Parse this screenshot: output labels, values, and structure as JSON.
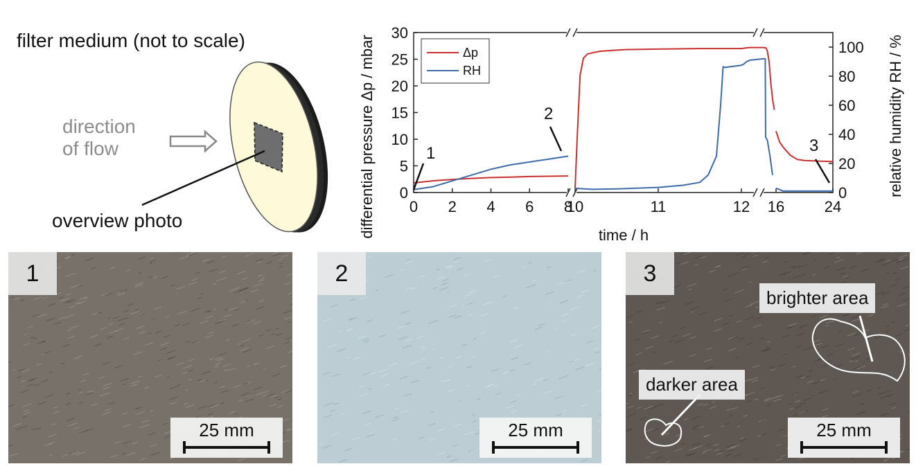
{
  "diagram": {
    "title": "filter medium (not to scale)",
    "flow_label_line1": "direction",
    "flow_label_line2": "of flow",
    "photo_label": "overview photo",
    "colors": {
      "disc_face": "#fdf9d9",
      "disc_edge": "#1b1b1b",
      "square": "#6e6e6e",
      "flow_text": "#8c8c8c"
    }
  },
  "chart_data": {
    "type": "line",
    "xlabel": "time / h",
    "ylabel_left": "differential pressure Δp / mbar",
    "ylabel_right": "relative humidity RH / %",
    "x_ticks": [
      "0",
      "2",
      "4",
      "6",
      "8",
      "10",
      "11",
      "12",
      "16",
      "24"
    ],
    "y_left_ticks": [
      "0",
      "5",
      "10",
      "15",
      "20",
      "25",
      "30"
    ],
    "y_right_ticks": [
      "0",
      "20",
      "40",
      "60",
      "80",
      "100"
    ],
    "ylim_left": [
      0,
      30
    ],
    "ylim_right": [
      0,
      110
    ],
    "axis_breaks": [
      "between 8 h and 10 h",
      "between 12 h and 16 h"
    ],
    "legend": {
      "position": "top-left",
      "entries": [
        "Δp",
        "RH"
      ]
    },
    "series": [
      {
        "name": "Δp",
        "axis": "left",
        "color": "#c8302f",
        "points": [
          [
            0,
            1.8
          ],
          [
            1,
            2.2
          ],
          [
            2,
            2.45
          ],
          [
            3,
            2.65
          ],
          [
            4,
            2.8
          ],
          [
            5,
            2.9
          ],
          [
            6,
            3.0
          ],
          [
            7,
            3.05
          ],
          [
            8,
            3.1
          ],
          [
            10,
            0.8
          ],
          [
            10.03,
            12
          ],
          [
            10.06,
            22
          ],
          [
            10.1,
            25.2
          ],
          [
            10.15,
            26.0
          ],
          [
            10.3,
            26.5
          ],
          [
            10.6,
            26.8
          ],
          [
            11,
            26.9
          ],
          [
            11.5,
            27.0
          ],
          [
            12,
            27.0
          ],
          [
            12.5,
            27.1
          ],
          [
            13,
            27.2
          ],
          [
            14.6,
            27.2
          ],
          [
            14.85,
            27.1
          ],
          [
            15.0,
            26.5
          ],
          [
            15.2,
            24.5
          ],
          [
            15.4,
            20.5
          ],
          [
            15.6,
            17.5
          ],
          [
            15.8,
            15.5
          ],
          [
            16,
            11.5
          ],
          [
            16.5,
            9.5
          ],
          [
            17,
            8.5
          ],
          [
            18,
            7.0
          ],
          [
            19,
            6.2
          ],
          [
            20,
            6.0
          ],
          [
            22,
            5.9
          ],
          [
            24,
            5.8
          ]
        ]
      },
      {
        "name": "RH",
        "axis": "right",
        "color": "#3e6aa8",
        "points": [
          [
            0,
            2
          ],
          [
            1,
            4
          ],
          [
            2,
            8
          ],
          [
            3,
            12
          ],
          [
            4,
            16
          ],
          [
            5,
            19
          ],
          [
            6,
            21
          ],
          [
            7,
            23
          ],
          [
            8,
            25
          ],
          [
            10,
            3
          ],
          [
            10.2,
            2.2
          ],
          [
            10.5,
            2.5
          ],
          [
            11,
            3.5
          ],
          [
            11.3,
            5
          ],
          [
            11.5,
            7
          ],
          [
            11.6,
            12
          ],
          [
            11.7,
            25
          ],
          [
            11.75,
            60
          ],
          [
            11.78,
            86.5
          ],
          [
            11.8,
            86
          ],
          [
            12,
            87.5
          ],
          [
            12.3,
            88.5
          ],
          [
            12.6,
            90
          ],
          [
            13,
            91
          ],
          [
            14.6,
            92
          ],
          [
            14.75,
            92
          ],
          [
            14.8,
            38
          ],
          [
            15,
            36
          ],
          [
            15.3,
            25
          ],
          [
            15.6,
            12
          ],
          [
            16,
            3
          ],
          [
            17,
            1
          ],
          [
            24,
            1
          ]
        ]
      }
    ],
    "annotations": [
      {
        "label": "1",
        "x": 0,
        "series": "Δp"
      },
      {
        "label": "2",
        "x": 8,
        "series": "RH"
      },
      {
        "label": "3",
        "x": 24,
        "series": "Δp"
      }
    ]
  },
  "photos": [
    {
      "number": "1",
      "scale_label": "25 mm",
      "tone": "#77716a"
    },
    {
      "number": "2",
      "scale_label": "25 mm",
      "tone": "#bccdd4"
    },
    {
      "number": "3",
      "scale_label": "25 mm",
      "tone": "#5f5852",
      "labels": {
        "bright": "brighter area",
        "dark": "darker area"
      }
    }
  ]
}
